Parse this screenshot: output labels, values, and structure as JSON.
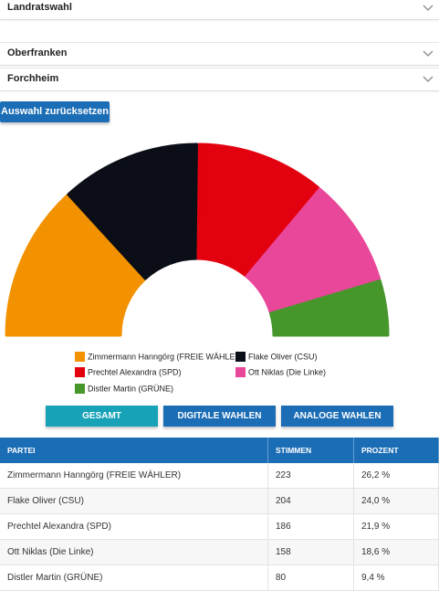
{
  "selects": [
    {
      "label": "Landratswahl"
    },
    {
      "label": "Oberfranken"
    },
    {
      "label": "Forchheim"
    }
  ],
  "reset_label": "Auswahl zurücksetzen",
  "chart_data": {
    "type": "pie",
    "variant": "semicircle-donut",
    "title": "",
    "series": [
      {
        "name": "Zimmermann Hanngörg (FREIE WÄHLER)",
        "value": 223,
        "color": "#f39200"
      },
      {
        "name": "Flake Oliver (CSU)",
        "value": 204,
        "color": "#0b0e17"
      },
      {
        "name": "Prechtel Alexandra (SPD)",
        "value": 186,
        "color": "#e3000f"
      },
      {
        "name": "Ott Niklas (Die Linke)",
        "value": 158,
        "color": "#e9479a"
      },
      {
        "name": "Distler Martin (GRÜNE)",
        "value": 80,
        "color": "#46962b"
      }
    ]
  },
  "legend": [
    {
      "label": "Zimmermann Hanngörg (FREIE WÄHLER)",
      "color": "#f39200"
    },
    {
      "label": "Flake Oliver (CSU)",
      "color": "#0b0e17"
    },
    {
      "label": "Prechtel Alexandra (SPD)",
      "color": "#e3000f"
    },
    {
      "label": "Ott Niklas (Die Linke)",
      "color": "#e9479a"
    },
    {
      "label": "Distler Martin (GRÜNE)",
      "color": "#46962b"
    }
  ],
  "tabs": [
    {
      "label": "GESAMT",
      "color": "#17a2b8"
    },
    {
      "label": "DIGITALE WAHLEN",
      "color": "#1b6db5"
    },
    {
      "label": "ANALOGE WAHLEN",
      "color": "#1b6db5"
    }
  ],
  "table": {
    "headers": [
      "PARTEI",
      "STIMMEN",
      "PROZENT"
    ],
    "rows": [
      [
        "Zimmermann Hanngörg (FREIE WÄHLER)",
        "223",
        "26,2 %"
      ],
      [
        "Flake Oliver (CSU)",
        "204",
        "24,0 %"
      ],
      [
        "Prechtel Alexandra (SPD)",
        "186",
        "21,9 %"
      ],
      [
        "Ott Niklas (Die Linke)",
        "158",
        "18,6 %"
      ],
      [
        "Distler Martin (GRÜNE)",
        "80",
        "9,4 %"
      ]
    ]
  },
  "icons": {
    "dropdown": "chevron-down-icon"
  }
}
